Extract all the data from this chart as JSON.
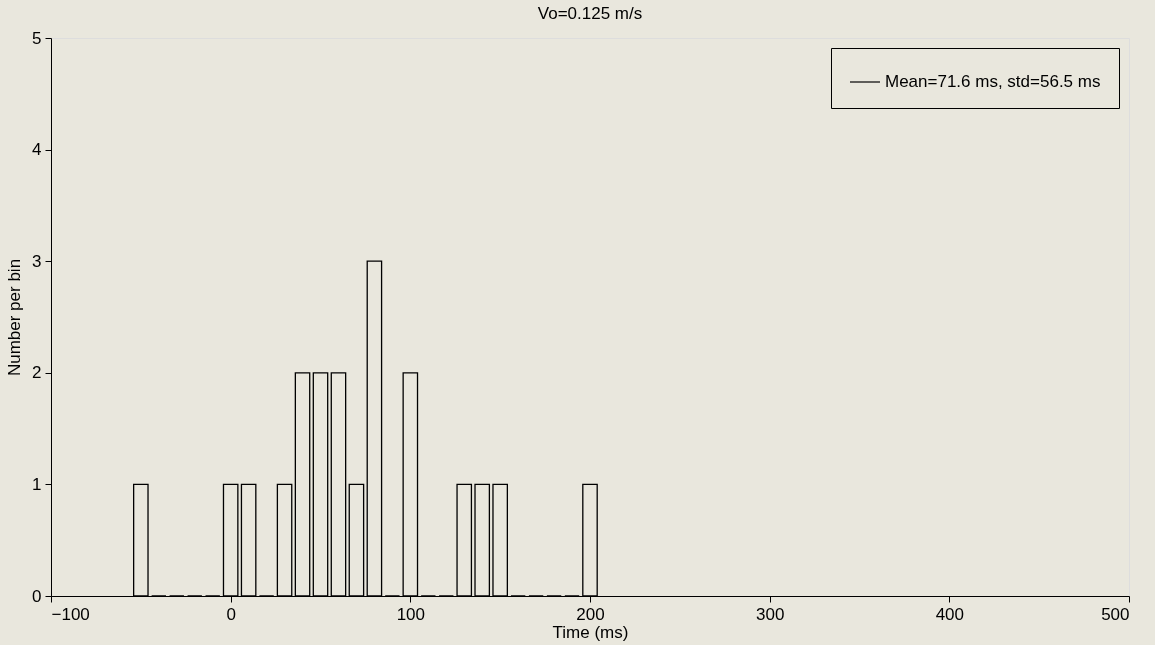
{
  "chart_data": {
    "type": "histogram",
    "title": "Vo=0.125 m/s",
    "xlabel": "Time (ms)",
    "ylabel": "Number per bin",
    "bins": [
      -55,
      -45,
      -35,
      -25,
      -15,
      -5,
      5,
      15,
      25,
      35,
      45,
      55,
      65,
      75,
      85,
      95,
      105,
      115,
      125,
      135,
      145,
      155,
      165,
      175,
      185,
      195,
      205
    ],
    "series": [
      {
        "name": "Mean=71.6 ms, std=56.5 ms",
        "color": "#000000",
        "values": [
          1,
          0,
          0,
          0,
          0,
          1,
          1,
          0,
          1,
          2,
          2,
          2,
          1,
          3,
          0,
          2,
          0,
          0,
          1,
          1,
          1,
          0,
          0,
          0,
          0,
          1
        ]
      }
    ],
    "xlim": [
      -100,
      500
    ],
    "xticks": [
      -100,
      0,
      100,
      200,
      300,
      400,
      500
    ],
    "ylim": [
      0,
      5
    ],
    "yticks": [
      0,
      1,
      2,
      3,
      4,
      5
    ],
    "grid": false,
    "legend": "top right"
  }
}
